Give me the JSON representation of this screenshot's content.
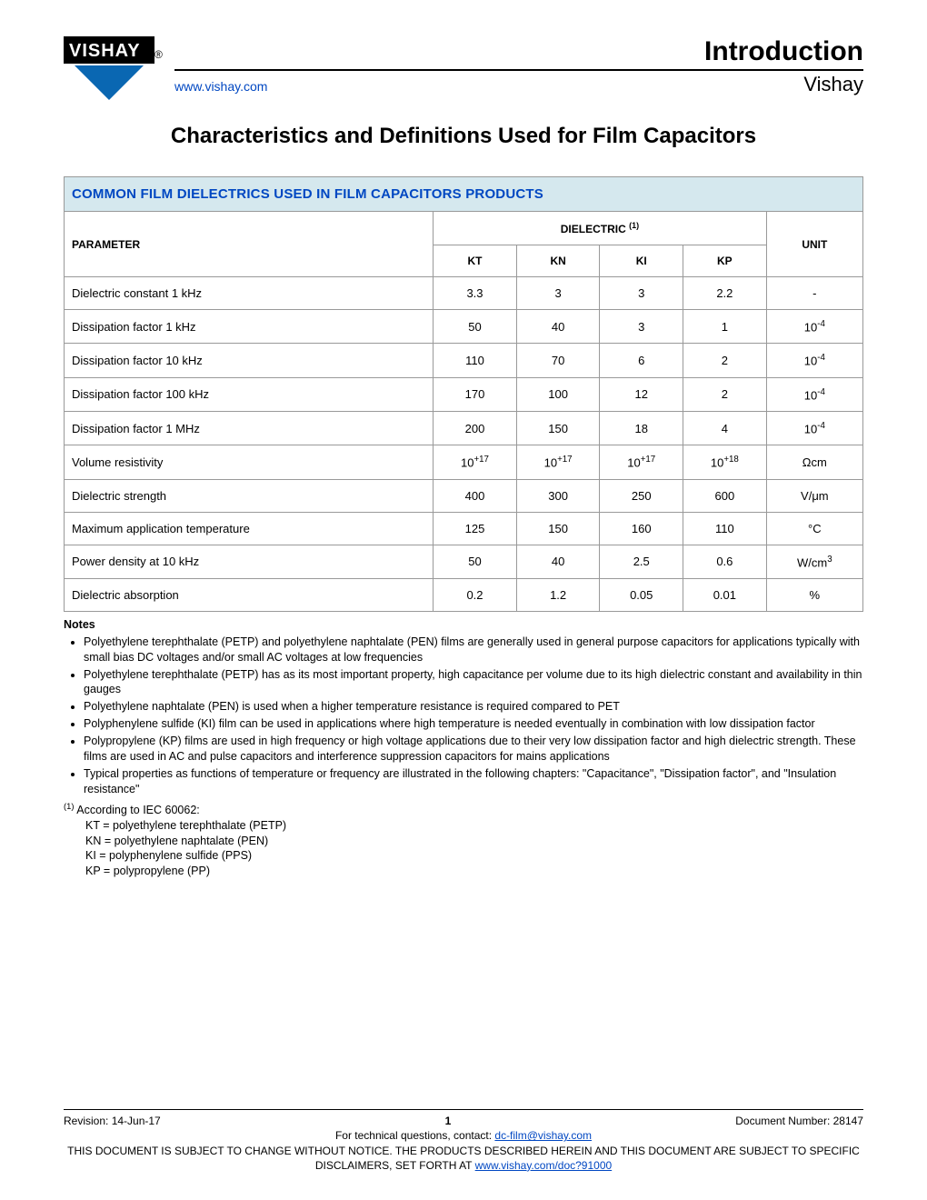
{
  "header": {
    "intro": "Introduction",
    "url": "www.vishay.com",
    "brand": "Vishay",
    "logo_text_top": "VISHAY",
    "logo_reg": "®",
    "logo_colors": {
      "blue": "#0a67b2",
      "dark": "#000000",
      "text": "#ffffff"
    }
  },
  "title": "Characteristics and Definitions Used for Film Capacitors",
  "table": {
    "caption": "COMMON FILM DIELECTRICS USED IN FILM CAPACITORS PRODUCTS",
    "param_header": "PARAMETER",
    "dielectric_header": "DIELECTRIC",
    "dielectric_sup": "(1)",
    "unit_header": "UNIT",
    "columns": [
      "KT",
      "KN",
      "KI",
      "KP"
    ],
    "colors": {
      "caption_bg": "#d5e8ee",
      "caption_fg": "#0047c2",
      "border": "#999999"
    },
    "rows": [
      {
        "param": "Dielectric constant 1 kHz",
        "vals": [
          "3.3",
          "3",
          "3",
          "2.2"
        ],
        "unit_html": "-"
      },
      {
        "param": "Dissipation factor 1 kHz",
        "vals": [
          "50",
          "40",
          "3",
          "1"
        ],
        "unit_html": "10<sup>-4</sup>"
      },
      {
        "param": "Dissipation factor 10 kHz",
        "vals": [
          "110",
          "70",
          "6",
          "2"
        ],
        "unit_html": "10<sup>-4</sup>"
      },
      {
        "param": "Dissipation factor 100 kHz",
        "vals": [
          "170",
          "100",
          "12",
          "2"
        ],
        "unit_html": "10<sup>-4</sup>"
      },
      {
        "param": "Dissipation factor 1 MHz",
        "vals": [
          "200",
          "150",
          "18",
          "4"
        ],
        "unit_html": "10<sup>-4</sup>"
      },
      {
        "param": "Volume resistivity",
        "vals_html": [
          "10<sup>+17</sup>",
          "10<sup>+17</sup>",
          "10<sup>+17</sup>",
          "10<sup>+18</sup>"
        ],
        "unit_html": "Ωcm"
      },
      {
        "param": "Dielectric strength",
        "vals": [
          "400",
          "300",
          "250",
          "600"
        ],
        "unit_html": "V/μm"
      },
      {
        "param": "Maximum application temperature",
        "vals": [
          "125",
          "150",
          "160",
          "110"
        ],
        "unit_html": "°C"
      },
      {
        "param": "Power density at 10 kHz",
        "vals": [
          "50",
          "40",
          "2.5",
          "0.6"
        ],
        "unit_html": "W/cm<sup>3</sup>"
      },
      {
        "param": "Dielectric absorption",
        "vals": [
          "0.2",
          "1.2",
          "0.05",
          "0.01"
        ],
        "unit_html": "%"
      }
    ]
  },
  "notes": {
    "heading": "Notes",
    "bullets": [
      "Polyethylene terephthalate (PETP) and polyethylene naphtalate (PEN) films are generally used in general purpose capacitors for applications typically with small bias DC voltages and/or small AC voltages at low frequencies",
      "Polyethylene terephthalate (PETP) has as its most important property, high capacitance per volume due to its high dielectric constant and availability in thin gauges",
      "Polyethylene naphtalate (PEN) is used when a higher temperature resistance is required compared to PET",
      "Polyphenylene sulfide (KI) film can be used in applications where high temperature is needed eventually in combination with low dissipation factor",
      "Polypropylene (KP) films are used in high frequency or high voltage applications due to their very low dissipation factor and high dielectric strength. These films are used in AC and pulse capacitors and interference suppression capacitors for mains applications",
      "Typical properties as functions of temperature or frequency are illustrated in the following chapters: \"Capacitance\", \"Dissipation factor\", and \"Insulation resistance\""
    ],
    "footnote_label": "(1)",
    "footnote_intro": "According to IEC 60062:",
    "defs": [
      "KT = polyethylene terephthalate (PETP)",
      "KN = polyethylene naphtalate (PEN)",
      "KI = polyphenylene sulfide (PPS)",
      "KP = polypropylene (PP)"
    ]
  },
  "footer": {
    "revision": "Revision: 14-Jun-17",
    "page": "1",
    "docnum": "Document Number: 28147",
    "tech_contact_pre": "For technical questions, contact: ",
    "tech_contact_link": "dc-film@vishay.com",
    "disclaimer_pre": "THIS DOCUMENT IS SUBJECT TO CHANGE WITHOUT NOTICE. THE PRODUCTS DESCRIBED HEREIN AND THIS DOCUMENT ARE SUBJECT TO SPECIFIC DISCLAIMERS, SET FORTH AT ",
    "disclaimer_link": "www.vishay.com/doc?91000"
  }
}
